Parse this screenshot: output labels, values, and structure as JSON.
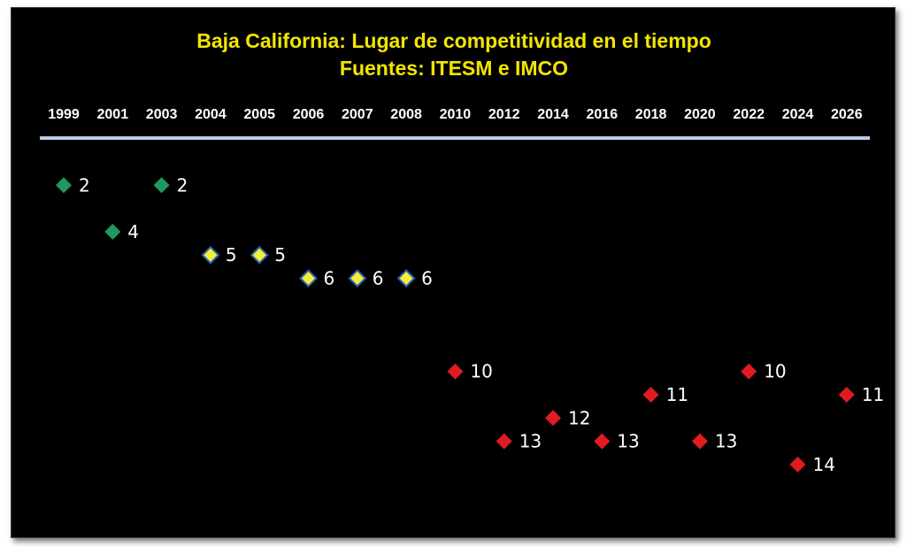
{
  "chart_data": {
    "type": "scatter",
    "title": "Baja California: Lugar de competitividad en el tiempo",
    "subtitle": "Fuentes: ITESM e IMCO",
    "categories": [
      "1999",
      "2001",
      "2003",
      "2004",
      "2005",
      "2006",
      "2007",
      "2008",
      "2010",
      "2012",
      "2014",
      "2016",
      "2018",
      "2020",
      "2022",
      "2024",
      "2026"
    ],
    "y_axis": {
      "inverted": true,
      "ylim": [
        0,
        15
      ]
    },
    "colors": {
      "green": "#1f9a5c",
      "yellow": "#f2ee3a",
      "red": "#e11b22",
      "axis_line": "#b8cce4",
      "title": "#f2e600"
    },
    "points": [
      {
        "x": "1999",
        "y": 2,
        "label": "2",
        "color": "green"
      },
      {
        "x": "2001",
        "y": 4,
        "label": "4",
        "color": "green"
      },
      {
        "x": "2003",
        "y": 2,
        "label": "2",
        "color": "green"
      },
      {
        "x": "2004",
        "y": 5,
        "label": "5",
        "color": "yellow"
      },
      {
        "x": "2005",
        "y": 5,
        "label": "5",
        "color": "yellow"
      },
      {
        "x": "2006",
        "y": 6,
        "label": "6",
        "color": "yellow"
      },
      {
        "x": "2007",
        "y": 6,
        "label": "6",
        "color": "yellow"
      },
      {
        "x": "2008",
        "y": 6,
        "label": "6",
        "color": "yellow"
      },
      {
        "x": "2010",
        "y": 10,
        "label": "10",
        "color": "red"
      },
      {
        "x": "2012",
        "y": 13,
        "label": "13",
        "color": "red"
      },
      {
        "x": "2014",
        "y": 12,
        "label": "12",
        "color": "red"
      },
      {
        "x": "2016",
        "y": 13,
        "label": "13",
        "color": "red"
      },
      {
        "x": "2018",
        "y": 11,
        "label": "11",
        "color": "red"
      },
      {
        "x": "2020",
        "y": 13,
        "label": "13",
        "color": "red"
      },
      {
        "x": "2022",
        "y": 10,
        "label": "10",
        "color": "red"
      },
      {
        "x": "2024",
        "y": 14,
        "label": "14",
        "color": "red"
      },
      {
        "x": "2026",
        "y": 11,
        "label": "11",
        "color": "red"
      }
    ]
  }
}
